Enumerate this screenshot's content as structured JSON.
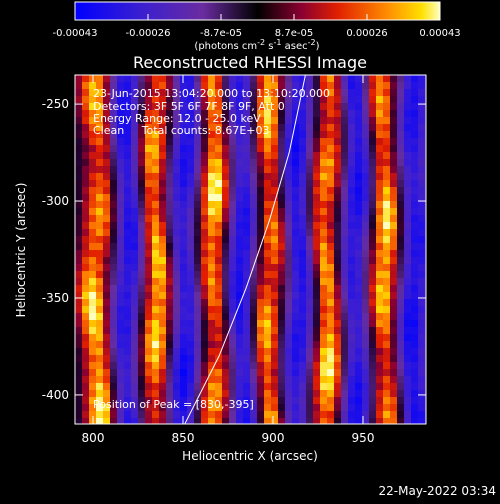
{
  "colorbar": {
    "ticks": [
      "-0.00043",
      "-0.00026",
      "-8.7e-05",
      "8.7e-05",
      "0.00026",
      "0.00043"
    ],
    "unit_prefix": "(photons cm",
    "unit_sup1": "-2",
    "unit_mid": " s",
    "unit_sup2": "-1",
    "unit_mid2": " asec",
    "unit_sup3": "-2",
    "unit_suffix": ")"
  },
  "plot": {
    "title": "Reconstructed RHESSI Image",
    "annotations": [
      "23-Jun-2015 13:04:20.000 to 13:10:20.000",
      "Detectors: 3F 5F 6F 7F 8F 9F, Att 0",
      "Energy Range: 12.0 - 25.0 keV",
      "Clean     Total counts: 8.67E+03"
    ],
    "peak_label": "Position of Peak = [830,-395]",
    "xlabel": "Heliocentric X (arcsec)",
    "ylabel": "Heliocentric Y (arcsec)"
  },
  "footer": {
    "timestamp": "22-May-2022 03:34"
  },
  "chart_data": {
    "type": "heatmap",
    "title": "Reconstructed RHESSI Image",
    "xlabel": "Heliocentric X (arcsec)",
    "ylabel": "Heliocentric Y (arcsec)",
    "xlim": [
      790,
      985
    ],
    "ylim": [
      -415,
      -235
    ],
    "x_ticks": [
      800,
      850,
      900,
      950
    ],
    "y_ticks": [
      -250,
      -300,
      -350,
      -400
    ],
    "colorbar_range": [
      -0.00043,
      0.00043
    ],
    "stripes": [
      {
        "x": 803,
        "amp": 1.0
      },
      {
        "x": 819,
        "amp": -1.0
      },
      {
        "x": 835,
        "amp": 1.0
      },
      {
        "x": 851,
        "amp": -1.0
      },
      {
        "x": 867,
        "amp": 1.0
      },
      {
        "x": 883,
        "amp": -1.0
      },
      {
        "x": 898,
        "amp": 1.0
      },
      {
        "x": 914,
        "amp": -1.0
      },
      {
        "x": 930,
        "amp": 1.0
      },
      {
        "x": 946,
        "amp": -1.0
      },
      {
        "x": 962,
        "amp": 1.0
      },
      {
        "x": 978,
        "amp": -1.0
      }
    ],
    "limb_curve": [
      [
        851,
        -415
      ],
      [
        870,
        -380
      ],
      [
        885,
        -345
      ],
      [
        898,
        -310
      ],
      [
        909,
        -275
      ],
      [
        918,
        -235
      ]
    ],
    "peak": [
      830,
      -395
    ]
  }
}
